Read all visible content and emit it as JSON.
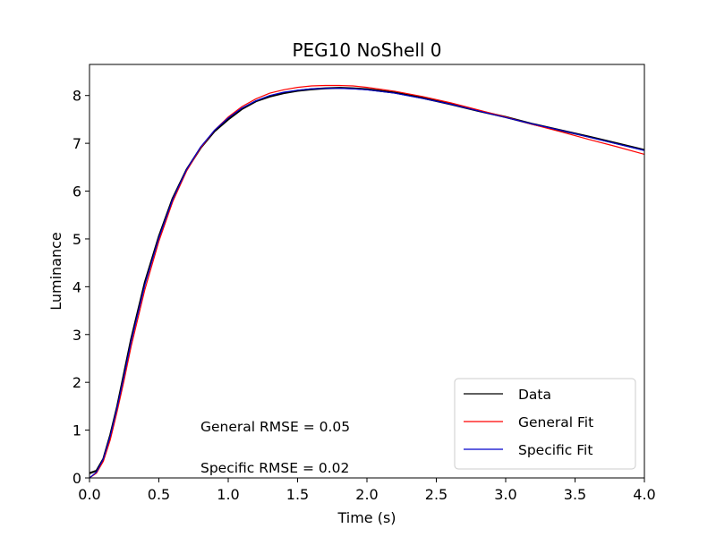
{
  "chart_data": {
    "type": "line",
    "title": "PEG10 NoShell 0",
    "xlabel": "Time (s)",
    "ylabel": "Luminance",
    "xlim": [
      0.0,
      4.0
    ],
    "ylim": [
      0.0,
      8.65
    ],
    "xticks": [
      0.0,
      0.5,
      1.0,
      1.5,
      2.0,
      2.5,
      3.0,
      3.5,
      4.0
    ],
    "xtick_labels": [
      "0.0",
      "0.5",
      "1.0",
      "1.5",
      "2.0",
      "2.5",
      "3.0",
      "3.5",
      "4.0"
    ],
    "yticks": [
      0,
      1,
      2,
      3,
      4,
      5,
      6,
      7,
      8
    ],
    "ytick_labels": [
      "0",
      "1",
      "2",
      "3",
      "4",
      "5",
      "6",
      "7",
      "8"
    ],
    "grid": false,
    "legend_position": "lower-right",
    "annotations": [
      {
        "text": "General RMSE = 0.05"
      },
      {
        "text": "Specific RMSE = 0.02"
      }
    ],
    "series": [
      {
        "name": "Data",
        "color": "#000000",
        "x": [
          0.0,
          0.05,
          0.1,
          0.15,
          0.2,
          0.25,
          0.3,
          0.4,
          0.5,
          0.6,
          0.7,
          0.8,
          0.9,
          1.0,
          1.1,
          1.2,
          1.3,
          1.4,
          1.5,
          1.6,
          1.7,
          1.8,
          1.9,
          2.0,
          2.2,
          2.4,
          2.6,
          2.8,
          3.0,
          3.2,
          3.4,
          3.6,
          3.8,
          4.0
        ],
        "y": [
          0.1,
          0.15,
          0.4,
          0.9,
          1.5,
          2.2,
          2.9,
          4.1,
          5.05,
          5.85,
          6.45,
          6.9,
          7.25,
          7.5,
          7.72,
          7.88,
          7.98,
          8.05,
          8.1,
          8.13,
          8.15,
          8.16,
          8.15,
          8.13,
          8.06,
          7.95,
          7.82,
          7.68,
          7.55,
          7.4,
          7.27,
          7.14,
          7.0,
          6.86
        ]
      },
      {
        "name": "General Fit",
        "color": "#ff0000",
        "x": [
          0.0,
          0.05,
          0.1,
          0.15,
          0.2,
          0.25,
          0.3,
          0.4,
          0.5,
          0.6,
          0.7,
          0.8,
          0.9,
          1.0,
          1.1,
          1.2,
          1.3,
          1.4,
          1.5,
          1.6,
          1.7,
          1.8,
          1.9,
          2.0,
          2.2,
          2.4,
          2.6,
          2.8,
          3.0,
          3.2,
          3.4,
          3.6,
          3.8,
          4.0
        ],
        "y": [
          0.0,
          0.1,
          0.35,
          0.8,
          1.4,
          2.05,
          2.75,
          3.95,
          4.95,
          5.78,
          6.42,
          6.9,
          7.27,
          7.55,
          7.77,
          7.93,
          8.05,
          8.12,
          8.17,
          8.2,
          8.21,
          8.21,
          8.2,
          8.17,
          8.09,
          7.98,
          7.85,
          7.7,
          7.55,
          7.39,
          7.24,
          7.08,
          6.93,
          6.77
        ]
      },
      {
        "name": "Specific Fit",
        "color": "#0000cc",
        "x": [
          0.0,
          0.05,
          0.1,
          0.15,
          0.2,
          0.25,
          0.3,
          0.4,
          0.5,
          0.6,
          0.7,
          0.8,
          0.9,
          1.0,
          1.1,
          1.2,
          1.3,
          1.4,
          1.5,
          1.6,
          1.7,
          1.8,
          1.9,
          2.0,
          2.2,
          2.4,
          2.6,
          2.8,
          3.0,
          3.2,
          3.4,
          3.6,
          3.8,
          4.0
        ],
        "y": [
          0.0,
          0.12,
          0.4,
          0.88,
          1.48,
          2.15,
          2.85,
          4.05,
          5.02,
          5.83,
          6.45,
          6.92,
          7.27,
          7.53,
          7.74,
          7.89,
          8.0,
          8.07,
          8.11,
          8.14,
          8.15,
          8.15,
          8.14,
          8.12,
          8.05,
          7.94,
          7.82,
          7.68,
          7.54,
          7.4,
          7.27,
          7.13,
          6.99,
          6.85
        ]
      }
    ]
  }
}
